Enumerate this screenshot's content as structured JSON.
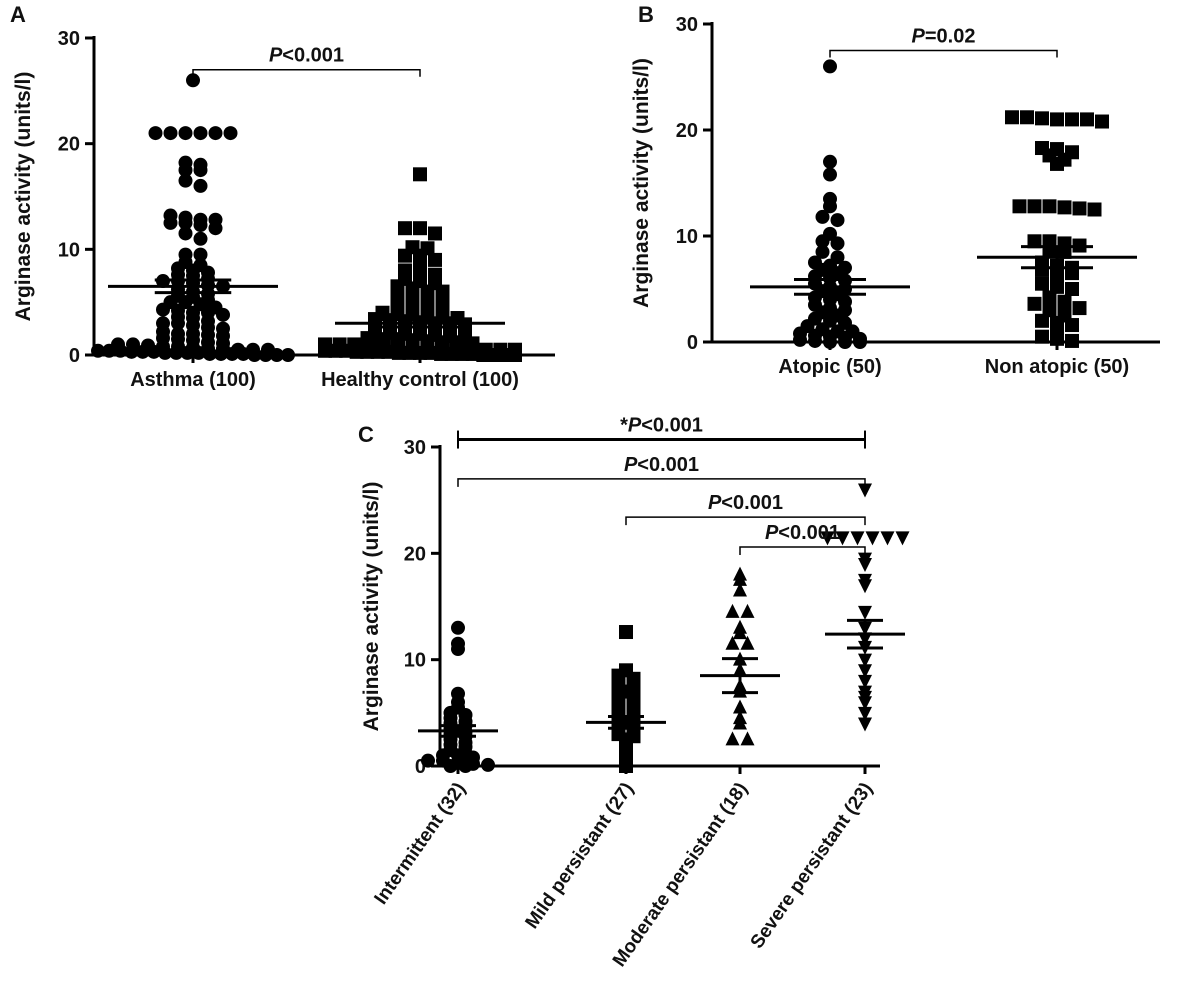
{
  "chart_data": [
    {
      "panel": "A",
      "type": "scatter",
      "ylabel": "Arginase activity (units/l)",
      "ylim": [
        0,
        30
      ],
      "yticks": [
        0,
        10,
        20,
        30
      ],
      "categories": [
        "Asthma (100)",
        "Healthy control (100)"
      ],
      "markers": [
        "circle",
        "square"
      ],
      "means": [
        6.5,
        3.0
      ],
      "sem": [
        0.6,
        0.35
      ],
      "significance": [
        {
          "from": 0,
          "to": 1,
          "label_prefix": "",
          "label_italic": "P",
          "label_suffix": "<0.001",
          "y": 27
        }
      ],
      "series": [
        {
          "values": [
            26,
            21,
            21,
            21,
            21,
            21,
            21,
            18.2,
            18,
            17.5,
            17.5,
            16.5,
            16,
            13.2,
            13,
            12.8,
            12.8,
            12.5,
            12.5,
            12.3,
            12,
            11.5,
            11,
            9.5,
            9.5,
            8.8,
            8.5,
            8.2,
            8,
            7.8,
            7.6,
            7.5,
            7.2,
            7,
            7,
            6.8,
            6.6,
            6.5,
            6.2,
            6,
            5.8,
            5.6,
            5.5,
            5.2,
            5,
            5,
            4.8,
            4.5,
            4.3,
            4.2,
            4,
            4,
            3.8,
            3.6,
            3.5,
            3.2,
            3,
            3,
            2.8,
            2.6,
            2.5,
            2.2,
            2,
            2,
            1.9,
            1.8,
            1.6,
            1.5,
            1.4,
            1.2,
            1.1,
            1,
            1,
            0.9,
            0.8,
            0.8,
            0.7,
            0.6,
            0.6,
            0.5,
            0.5,
            0.5,
            0.4,
            0.4,
            0.4,
            0.3,
            0.3,
            0.3,
            0.2,
            0.2,
            0.2,
            0.2,
            0.1,
            0.1,
            0.1,
            0.1,
            0,
            0,
            0,
            0
          ]
        },
        {
          "values": [
            17.1,
            12,
            12,
            11.5,
            10.2,
            10.1,
            9.4,
            9.4,
            9,
            8.7,
            8,
            7.8,
            7.6,
            7.2,
            7,
            6.8,
            6.5,
            6.3,
            6,
            6,
            5.9,
            5.8,
            5.6,
            5.5,
            5.2,
            5,
            5,
            4.8,
            4.6,
            4.5,
            4.3,
            4.2,
            4,
            4,
            3.8,
            3.7,
            3.6,
            3.5,
            3.4,
            3.3,
            3.2,
            3.1,
            3,
            3,
            2.9,
            2.8,
            2.7,
            2.6,
            2.5,
            2.5,
            2.4,
            2.3,
            2.2,
            2.1,
            2,
            2,
            1.9,
            1.8,
            1.7,
            1.6,
            1.5,
            1.5,
            1.4,
            1.3,
            1.2,
            1.2,
            1.1,
            1,
            1,
            1,
            0.9,
            0.9,
            0.8,
            0.8,
            0.7,
            0.7,
            0.6,
            0.6,
            0.5,
            0.5,
            0.5,
            0.4,
            0.4,
            0.4,
            0.3,
            0.3,
            0.3,
            0.3,
            0.2,
            0.2,
            0.2,
            0.2,
            0.1,
            0.1,
            0.1,
            0.1,
            0,
            0,
            0,
            0
          ]
        }
      ]
    },
    {
      "panel": "B",
      "type": "scatter",
      "ylabel": "Arginase activity (units/l)",
      "ylim": [
        0,
        30
      ],
      "yticks": [
        0,
        10,
        20,
        30
      ],
      "categories": [
        "Atopic (50)",
        "Non atopic (50)"
      ],
      "markers": [
        "circle",
        "square"
      ],
      "means": [
        5.2,
        8.0
      ],
      "sem": [
        0.7,
        1.0
      ],
      "significance": [
        {
          "from": 0,
          "to": 1,
          "label_prefix": "",
          "label_italic": "P",
          "label_suffix": "=0.02",
          "y": 27.5
        }
      ],
      "series": [
        {
          "values": [
            26,
            17,
            15.8,
            13.5,
            12.8,
            11.8,
            11.5,
            10.2,
            9.5,
            9.3,
            8.5,
            8,
            7.5,
            7.2,
            7,
            6.8,
            6.5,
            6.2,
            6,
            5.8,
            5.5,
            5.2,
            5,
            4.8,
            4.5,
            4.2,
            4,
            3.8,
            3.5,
            3.2,
            3,
            2.8,
            2.5,
            2.2,
            2,
            1.8,
            1.5,
            1.2,
            1,
            1,
            0.8,
            0.6,
            0.5,
            0.4,
            0.3,
            0.2,
            0.1,
            0,
            0,
            0
          ]
        },
        {
          "values": [
            21.2,
            21.2,
            21.1,
            21,
            21,
            21,
            20.8,
            18.3,
            18.2,
            17.9,
            17.6,
            17.2,
            16.8,
            12.8,
            12.8,
            12.8,
            12.7,
            12.6,
            12.5,
            9.5,
            9.5,
            9.3,
            9.1,
            8.7,
            8.5,
            7.5,
            7.2,
            7,
            6.8,
            6.6,
            6.5,
            6.2,
            5.5,
            5.2,
            5,
            4.2,
            3.8,
            3.6,
            3.5,
            3.4,
            3.2,
            3,
            2.5,
            2,
            1.8,
            1.6,
            1.2,
            0.5,
            0.3,
            0.1
          ]
        }
      ]
    },
    {
      "panel": "C",
      "type": "scatter",
      "ylabel": "Arginase activity (units/l)",
      "ylim": [
        0,
        30
      ],
      "yticks": [
        0,
        10,
        20,
        30
      ],
      "categories": [
        "Intermittent (32)",
        "Mild persistant (27)",
        "Moderate persistant (18)",
        "Severe persistant (23)"
      ],
      "markers": [
        "circle",
        "square",
        "triangle-up",
        "triangle-down"
      ],
      "means": [
        3.3,
        4.1,
        8.5,
        12.4
      ],
      "sem": [
        0.5,
        0.55,
        1.6,
        1.3
      ],
      "significance": [
        {
          "from": 0,
          "to": 3,
          "label_prefix": "*",
          "label_italic": "P",
          "label_suffix": "<0.001",
          "y": 30.7,
          "thick": true
        },
        {
          "from": 0,
          "to": 3,
          "label_prefix": "",
          "label_italic": "P",
          "label_suffix": "<0.001",
          "y": 27
        },
        {
          "from": 1,
          "to": 3,
          "label_prefix": "",
          "label_italic": "P",
          "label_suffix": "<0.001",
          "y": 23.4
        },
        {
          "from": 2,
          "to": 3,
          "label_prefix": "",
          "label_italic": "P",
          "label_suffix": "<0.001",
          "y": 20.6
        }
      ],
      "series": [
        {
          "values": [
            13,
            11.5,
            11,
            6.8,
            6,
            5.5,
            5,
            4.8,
            4.5,
            4.2,
            4,
            3.8,
            3.5,
            3.2,
            3,
            2.8,
            2.5,
            2.2,
            2,
            1.8,
            1.5,
            1.2,
            1,
            1,
            0.8,
            0.5,
            0.5,
            0.3,
            0.2,
            0.1,
            0,
            0
          ]
        },
        {
          "values": [
            12.6,
            9,
            8.5,
            8.2,
            7.5,
            7.2,
            7,
            6.5,
            6.2,
            5.8,
            5.5,
            5,
            4.8,
            4.5,
            4.2,
            4,
            3.8,
            3.5,
            3.2,
            3,
            2.8,
            2.5,
            2,
            1.5,
            1,
            0.5,
            0
          ]
        },
        {
          "values": [
            18,
            17.5,
            16.5,
            14.5,
            14.5,
            13,
            12.5,
            11.5,
            11.5,
            10,
            9,
            7.5,
            7,
            5.5,
            4.5,
            4,
            2.5,
            2.5
          ]
        },
        {
          "values": [
            26,
            21.5,
            21.5,
            21.5,
            21.5,
            21.5,
            21.5,
            19.5,
            19,
            17.5,
            17,
            14.5,
            13,
            12,
            11.2,
            10,
            9,
            8,
            7,
            6.5,
            6,
            5,
            4
          ]
        }
      ]
    }
  ]
}
